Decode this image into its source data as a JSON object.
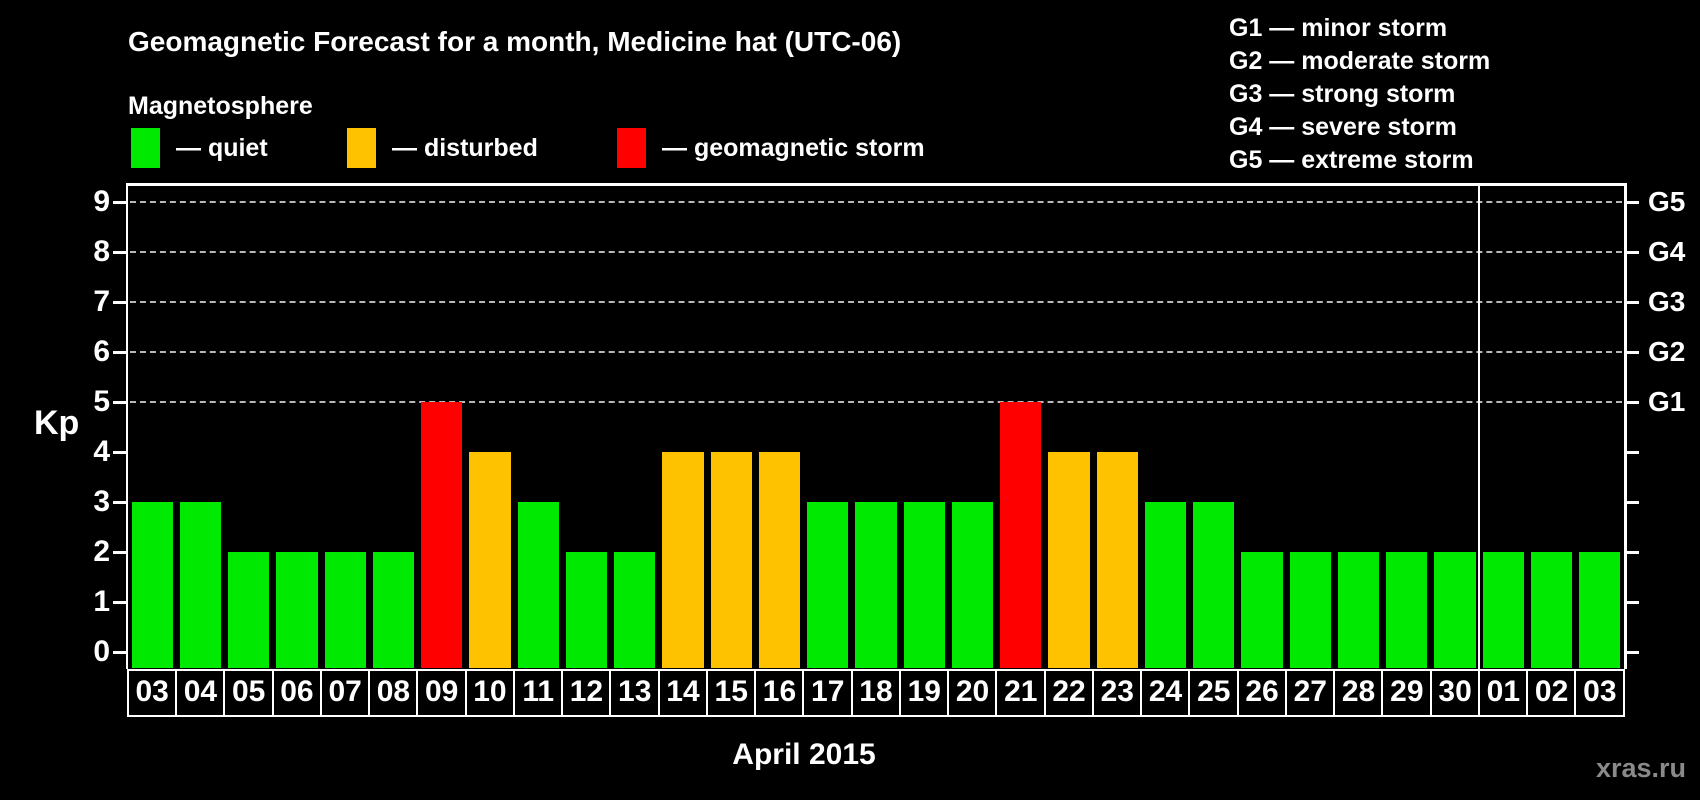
{
  "header": {
    "title": "Geomagnetic Forecast for a month, Medicine hat (UTC-06)",
    "legend_title": "Magnetosphere",
    "legend_items": [
      {
        "label": "— quiet",
        "status": "quiet"
      },
      {
        "label": "— disturbed",
        "status": "disturbed"
      },
      {
        "label": "— geomagnetic storm",
        "status": "storm"
      }
    ]
  },
  "g_legend": [
    "G1 — minor storm",
    "G2 — moderate storm",
    "G3 — strong storm",
    "G4 — severe storm",
    "G5 — extreme storm"
  ],
  "footer": {
    "xlabel": "April 2015",
    "watermark": "xras.ru"
  },
  "chart_data": {
    "type": "bar",
    "title": "Geomagnetic Forecast for a month, Medicine hat (UTC-06)",
    "ylabel": "Kp",
    "xlabel": "April 2015",
    "ylim": [
      0,
      9
    ],
    "yticks": [
      0,
      1,
      2,
      3,
      4,
      5,
      6,
      7,
      8,
      9
    ],
    "categories": [
      "03",
      "04",
      "05",
      "06",
      "07",
      "08",
      "09",
      "10",
      "11",
      "12",
      "13",
      "14",
      "15",
      "16",
      "17",
      "18",
      "19",
      "20",
      "21",
      "22",
      "23",
      "24",
      "25",
      "26",
      "27",
      "28",
      "29",
      "30",
      "01",
      "02",
      "03"
    ],
    "values": [
      3,
      3,
      2,
      2,
      2,
      2,
      5,
      4,
      3,
      2,
      2,
      4,
      4,
      4,
      3,
      3,
      3,
      3,
      5,
      4,
      4,
      3,
      3,
      2,
      2,
      2,
      2,
      2,
      2,
      2,
      2
    ],
    "statuses": [
      "quiet",
      "quiet",
      "quiet",
      "quiet",
      "quiet",
      "quiet",
      "storm",
      "disturbed",
      "quiet",
      "quiet",
      "quiet",
      "disturbed",
      "disturbed",
      "disturbed",
      "quiet",
      "quiet",
      "quiet",
      "quiet",
      "storm",
      "disturbed",
      "disturbed",
      "quiet",
      "quiet",
      "quiet",
      "quiet",
      "quiet",
      "quiet",
      "quiet",
      "quiet",
      "quiet",
      "quiet"
    ],
    "status_colors": {
      "quiet": "#00E900",
      "disturbed": "#FFC200",
      "storm": "#FF0000"
    },
    "right_axis": [
      {
        "label": "G1",
        "kp": 5
      },
      {
        "label": "G2",
        "kp": 6
      },
      {
        "label": "G3",
        "kp": 7
      },
      {
        "label": "G4",
        "kp": 8
      },
      {
        "label": "G5",
        "kp": 9
      }
    ],
    "gridlines_at": [
      5,
      6,
      7,
      8,
      9
    ],
    "month_separator_after_index": 27,
    "grid": "dashed-horizontal",
    "legend_position": "top-left"
  }
}
